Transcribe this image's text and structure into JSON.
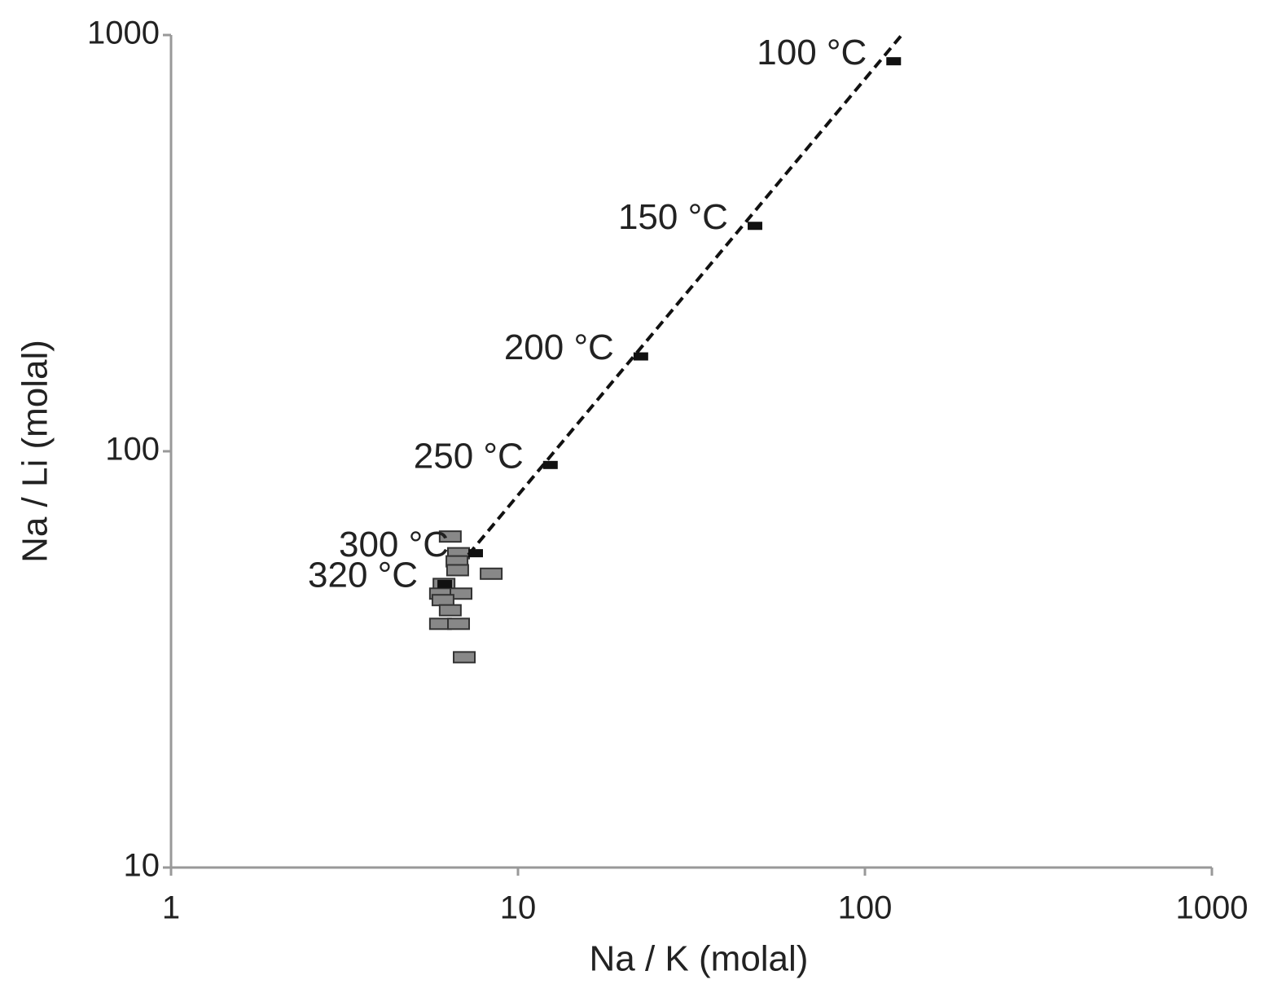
{
  "chart_data": {
    "type": "scatter",
    "xlabel": "Na / K (molal)",
    "ylabel": "Na / Li (molal)",
    "xscale": "log",
    "yscale": "log",
    "xlim": [
      1,
      1000
    ],
    "ylim": [
      10,
      1000
    ],
    "xticks": [
      1,
      10,
      100,
      1000
    ],
    "yticks": [
      10,
      100,
      1000
    ],
    "axis_color": "#999999",
    "series": [
      {
        "color": "#888888",
        "stroke": "#333333",
        "marker": "large-rect",
        "x": [
          6.38,
          6.74,
          6.67,
          6.7,
          8.37,
          6.12,
          5.98,
          6.85,
          6.08,
          6.38,
          5.98,
          6.74,
          7.0
        ],
        "y": [
          62.4,
          56.9,
          54.4,
          51.8,
          50.8,
          48.0,
          45.5,
          45.5,
          43.9,
          41.5,
          38.5,
          38.5,
          32.0
        ]
      },
      {
        "color": "#111111",
        "marker": "small-rect",
        "x": [
          121,
          48.2,
          22.6,
          12.4,
          7.55,
          6.15
        ],
        "y": [
          865,
          348,
          169,
          92.7,
          56.9,
          48.0
        ],
        "labels": [
          "100 °C",
          "150 °C",
          "200 °C",
          "250 °C",
          "300 °C",
          "320 °C"
        ]
      }
    ],
    "line": {
      "color": "#111111",
      "dashed": true,
      "x": [
        7.19,
        127.6
      ],
      "y": [
        56.4,
        1000
      ]
    }
  }
}
